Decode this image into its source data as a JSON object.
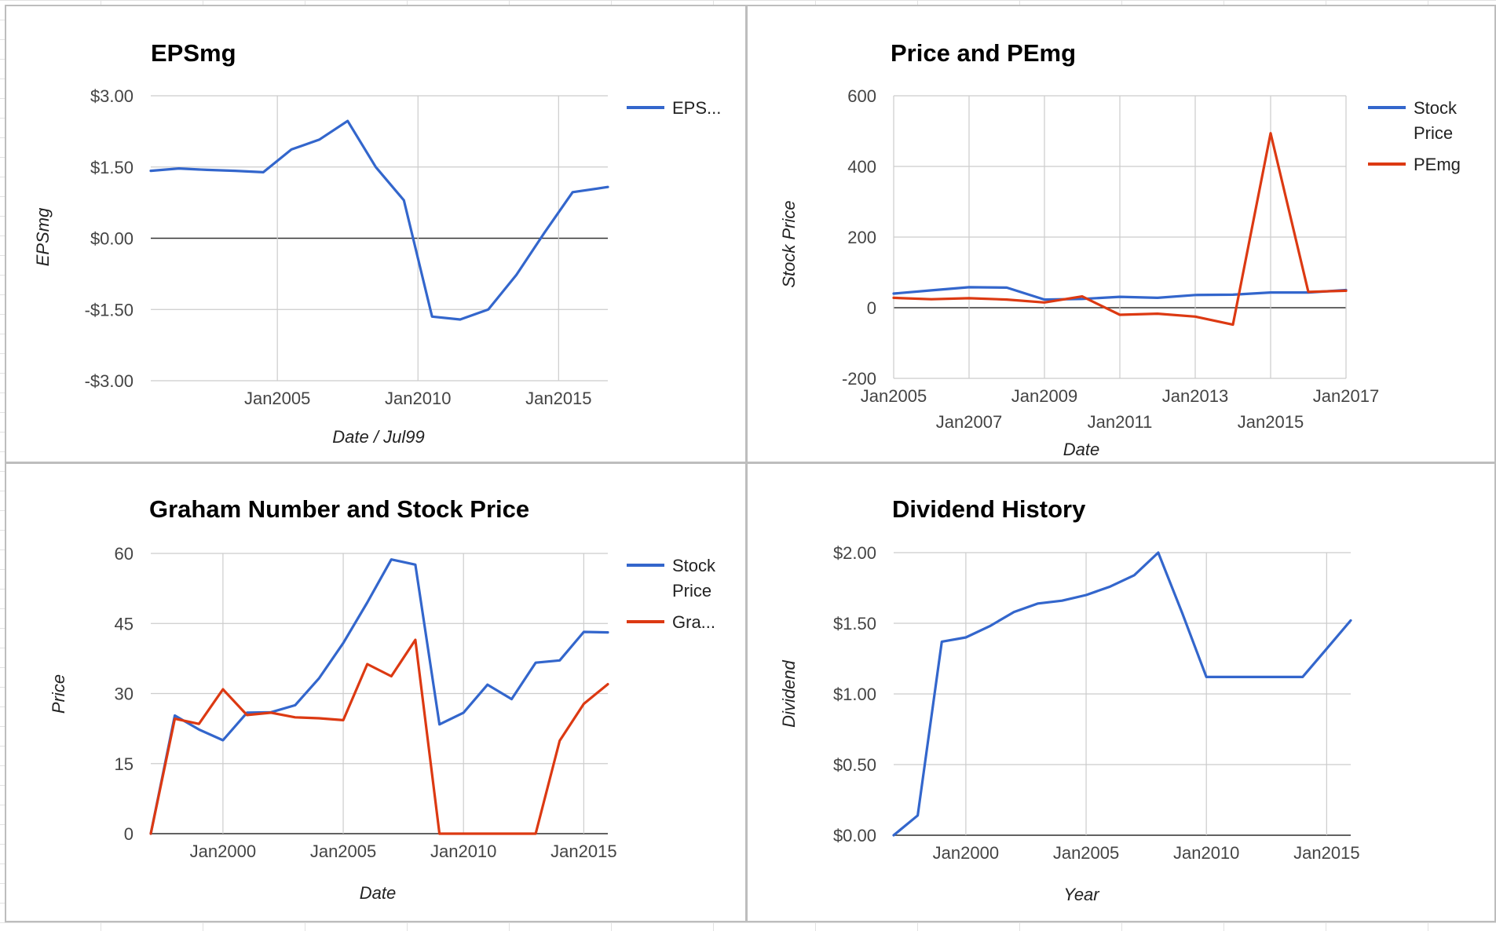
{
  "colors": {
    "blue": "#3366cc",
    "red": "#dc3912",
    "grid": "#cccccc",
    "zero": "#333333",
    "label": "#444444"
  },
  "chart_data": [
    {
      "type": "line",
      "title": "EPSmg",
      "xlabel": "Date / Jul99",
      "ylabel": "EPSmg",
      "xlim": [
        2000.5,
        2016.75
      ],
      "ylim": [
        -3.0,
        3.0
      ],
      "xticks": [
        2005,
        2010,
        2015
      ],
      "xtick_labels": [
        "Jan2005",
        "Jan2010",
        "Jan2015"
      ],
      "yticks": [
        3.0,
        1.5,
        0.0,
        -1.5,
        -3.0
      ],
      "ytick_labels": [
        "$3.00",
        "$1.50",
        "$0.00",
        "-$1.50",
        "-$3.00"
      ],
      "grid": true,
      "legend_position": "right",
      "series": [
        {
          "name": "EPS...",
          "color": "#3366cc",
          "x": [
            2000.5,
            2001.5,
            2002.5,
            2003.5,
            2004.5,
            2005.5,
            2006.5,
            2007.5,
            2008.5,
            2009.5,
            2010.5,
            2011.5,
            2012.5,
            2013.5,
            2014.5,
            2015.5,
            2016.75
          ],
          "y": [
            1.42,
            1.47,
            1.44,
            1.42,
            1.39,
            1.87,
            2.08,
            2.47,
            1.5,
            0.8,
            -1.65,
            -1.71,
            -1.5,
            -0.77,
            0.12,
            0.97,
            1.08
          ]
        }
      ]
    },
    {
      "type": "line",
      "title": "Price and PEmg",
      "xlabel": "Date",
      "ylabel": "Stock Price",
      "xlim": [
        2005,
        2017
      ],
      "ylim": [
        -200,
        600
      ],
      "xticks": [
        2005,
        2007,
        2009,
        2011,
        2013,
        2015,
        2017
      ],
      "xtick_labels": [
        "Jan2005",
        "Jan2007",
        "Jan2009",
        "Jan2011",
        "Jan2013",
        "Jan2015",
        "Jan2017"
      ],
      "yticks": [
        600,
        400,
        200,
        0,
        -200
      ],
      "ytick_labels": [
        "600",
        "400",
        "200",
        "0",
        "-200"
      ],
      "grid": true,
      "legend_position": "right",
      "series": [
        {
          "name": "Stock Price",
          "color": "#3366cc",
          "x": [
            2005,
            2006,
            2007,
            2008,
            2009,
            2010,
            2011,
            2012,
            2013,
            2014,
            2015,
            2016,
            2017
          ],
          "y": [
            40,
            49,
            58,
            57,
            23,
            25,
            31,
            28,
            36,
            37,
            43,
            43,
            50
          ]
        },
        {
          "name": "PEmg",
          "color": "#dc3912",
          "x": [
            2005,
            2006,
            2007,
            2008,
            2009,
            2010,
            2011,
            2012,
            2013,
            2014,
            2015,
            2016,
            2017
          ],
          "y": [
            28,
            24,
            27,
            23,
            15,
            32,
            -20,
            -17,
            -25,
            -48,
            494,
            45,
            48
          ]
        }
      ]
    },
    {
      "type": "line",
      "title": "Graham Number and Stock Price",
      "xlabel": "Date",
      "ylabel": "Price",
      "xlim": [
        1997,
        2016
      ],
      "ylim": [
        0,
        60
      ],
      "xticks": [
        2000,
        2005,
        2010,
        2015
      ],
      "xtick_labels": [
        "Jan2000",
        "Jan2005",
        "Jan2010",
        "Jan2015"
      ],
      "yticks": [
        60,
        45,
        30,
        15,
        0
      ],
      "ytick_labels": [
        "60",
        "45",
        "30",
        "15",
        "0"
      ],
      "grid": true,
      "legend_position": "right",
      "series": [
        {
          "name": "Stock Price",
          "color": "#3366cc",
          "x": [
            1997,
            1998,
            1999,
            2000,
            2001,
            2002,
            2003,
            2004,
            2005,
            2006,
            2007,
            2008,
            2009,
            2010,
            2011,
            2012,
            2013,
            2014,
            2015,
            2016
          ],
          "y": [
            0,
            25.3,
            22.3,
            20.0,
            25.9,
            26.0,
            27.5,
            33.3,
            40.8,
            49.5,
            58.7,
            57.6,
            23.4,
            25.9,
            31.9,
            28.8,
            36.6,
            37.1,
            43.2,
            43.1
          ]
        },
        {
          "name": "Gra...",
          "color": "#dc3912",
          "x": [
            1997,
            1998,
            1999,
            2000,
            2001,
            2002,
            2003,
            2004,
            2005,
            2006,
            2007,
            2008,
            2009,
            2010,
            2011,
            2012,
            2013,
            2014,
            2015,
            2016
          ],
          "y": [
            0,
            24.6,
            23.5,
            30.9,
            25.4,
            25.9,
            24.9,
            24.7,
            24.3,
            36.3,
            33.7,
            41.5,
            0,
            0,
            0,
            0,
            0,
            19.9,
            27.8,
            32.0
          ]
        }
      ]
    },
    {
      "type": "line",
      "title": "Dividend History",
      "xlabel": "Year",
      "ylabel": "Dividend",
      "xlim": [
        1997,
        2016
      ],
      "ylim": [
        0,
        2.0
      ],
      "xticks": [
        2000,
        2005,
        2010,
        2015
      ],
      "xtick_labels": [
        "Jan2000",
        "Jan2005",
        "Jan2010",
        "Jan2015"
      ],
      "yticks": [
        2.0,
        1.5,
        1.0,
        0.5,
        0.0
      ],
      "ytick_labels": [
        "$2.00",
        "$1.50",
        "$1.00",
        "$0.50",
        "$0.00"
      ],
      "grid": true,
      "legend_position": "none",
      "series": [
        {
          "color": "#3366cc",
          "x": [
            1997,
            1998,
            1999,
            2000,
            2001,
            2002,
            2003,
            2004,
            2005,
            2006,
            2007,
            2008,
            2009,
            2010,
            2011,
            2012,
            2013,
            2014,
            2015,
            2016
          ],
          "y": [
            0,
            0.14,
            1.37,
            1.4,
            1.48,
            1.58,
            1.64,
            1.66,
            1.7,
            1.76,
            1.84,
            2.0,
            1.57,
            1.12,
            1.12,
            1.12,
            1.12,
            1.12,
            1.32,
            1.52
          ]
        }
      ]
    }
  ]
}
